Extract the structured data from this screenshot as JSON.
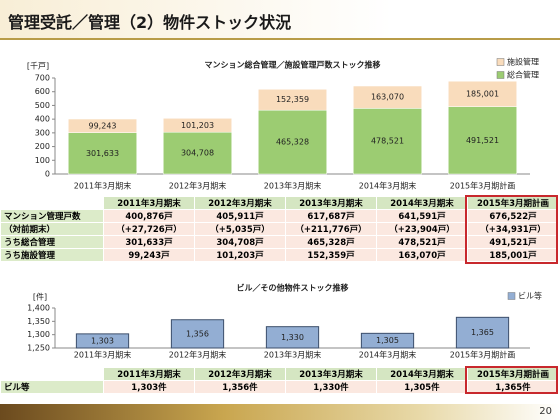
{
  "header": {
    "title": "管理受託／管理（2）物件ストック状況"
  },
  "page_number": "20",
  "chart_data": [
    {
      "type": "stacked-bar",
      "title": "マンション総合管理／施設管理戸数ストック推移",
      "y_unit": "[千戸]",
      "categories": [
        "2011年3月期末",
        "2012年3月期末",
        "2013年3月期末",
        "2014年3月期末",
        "2015年3月期計画"
      ],
      "series": [
        {
          "name": "総合管理",
          "color": "#9ccc72",
          "values": [
            301.633,
            304.708,
            465.328,
            478.521,
            491.521
          ],
          "value_labels": [
            "301,633",
            "304,708",
            "465,328",
            "478,521",
            "491,521"
          ]
        },
        {
          "name": "施設管理",
          "color": "#f9dcbc",
          "values": [
            99.243,
            101.203,
            152.359,
            163.07,
            185.001
          ],
          "value_labels": [
            "99,243",
            "101,203",
            "152,359",
            "163,070",
            "185,001"
          ]
        }
      ],
      "ylim": [
        0,
        700
      ],
      "yticks": [
        0,
        100,
        200,
        300,
        400,
        500,
        600,
        700
      ],
      "grid": false,
      "legend": "top-right"
    },
    {
      "type": "bar",
      "title": "ビル／その他物件ストック推移",
      "y_unit": "[件]",
      "categories": [
        "2011年3月期末",
        "2012年3月期末",
        "2013年3月期末",
        "2014年3月期末",
        "2015年3月期計画"
      ],
      "series": [
        {
          "name": "ビル等",
          "color": "#93aed3",
          "values": [
            1303,
            1356,
            1330,
            1305,
            1365
          ],
          "value_labels": [
            "1,303",
            "1,356",
            "1,330",
            "1,305",
            "1,365"
          ]
        }
      ],
      "ylim": [
        1250,
        1400
      ],
      "yticks": [
        {
          "value": 1250,
          "label": "1,250"
        },
        {
          "value": 1300,
          "label": "1,300"
        },
        {
          "value": 1350,
          "label": "1,350"
        },
        {
          "value": 1400,
          "label": "1,400"
        }
      ],
      "grid": false,
      "legend": "top-right"
    }
  ],
  "tables": [
    {
      "columns": [
        "2011年3月期末",
        "2012年3月期末",
        "2013年3月期末",
        "2014年3月期末",
        "2015年3月期計画"
      ],
      "rows": [
        {
          "label": "マンション管理戸数",
          "cells": [
            "400,876戸",
            "405,911戸",
            "617,687戸",
            "641,591戸",
            "676,522戸"
          ]
        },
        {
          "label": "（対前期末）",
          "cells": [
            "（+27,726戸）",
            "（+5,035戸）",
            "（+211,776戸）",
            "（+23,904戸）",
            "（+34,931戸）"
          ]
        },
        {
          "label": "うち総合管理",
          "cells": [
            "301,633戸",
            "304,708戸",
            "465,328戸",
            "478,521戸",
            "491,521戸"
          ]
        },
        {
          "label": "うち施設管理",
          "cells": [
            "99,243戸",
            "101,203戸",
            "152,359戸",
            "163,070戸",
            "185,001戸"
          ]
        }
      ]
    },
    {
      "columns": [
        "2011年3月期末",
        "2012年3月期末",
        "2013年3月期末",
        "2014年3月期末",
        "2015年3月期計画"
      ],
      "rows": [
        {
          "label": "ビル等",
          "cells": [
            "1,303件",
            "1,356件",
            "1,330件",
            "1,305件",
            "1,365件"
          ]
        }
      ]
    }
  ]
}
